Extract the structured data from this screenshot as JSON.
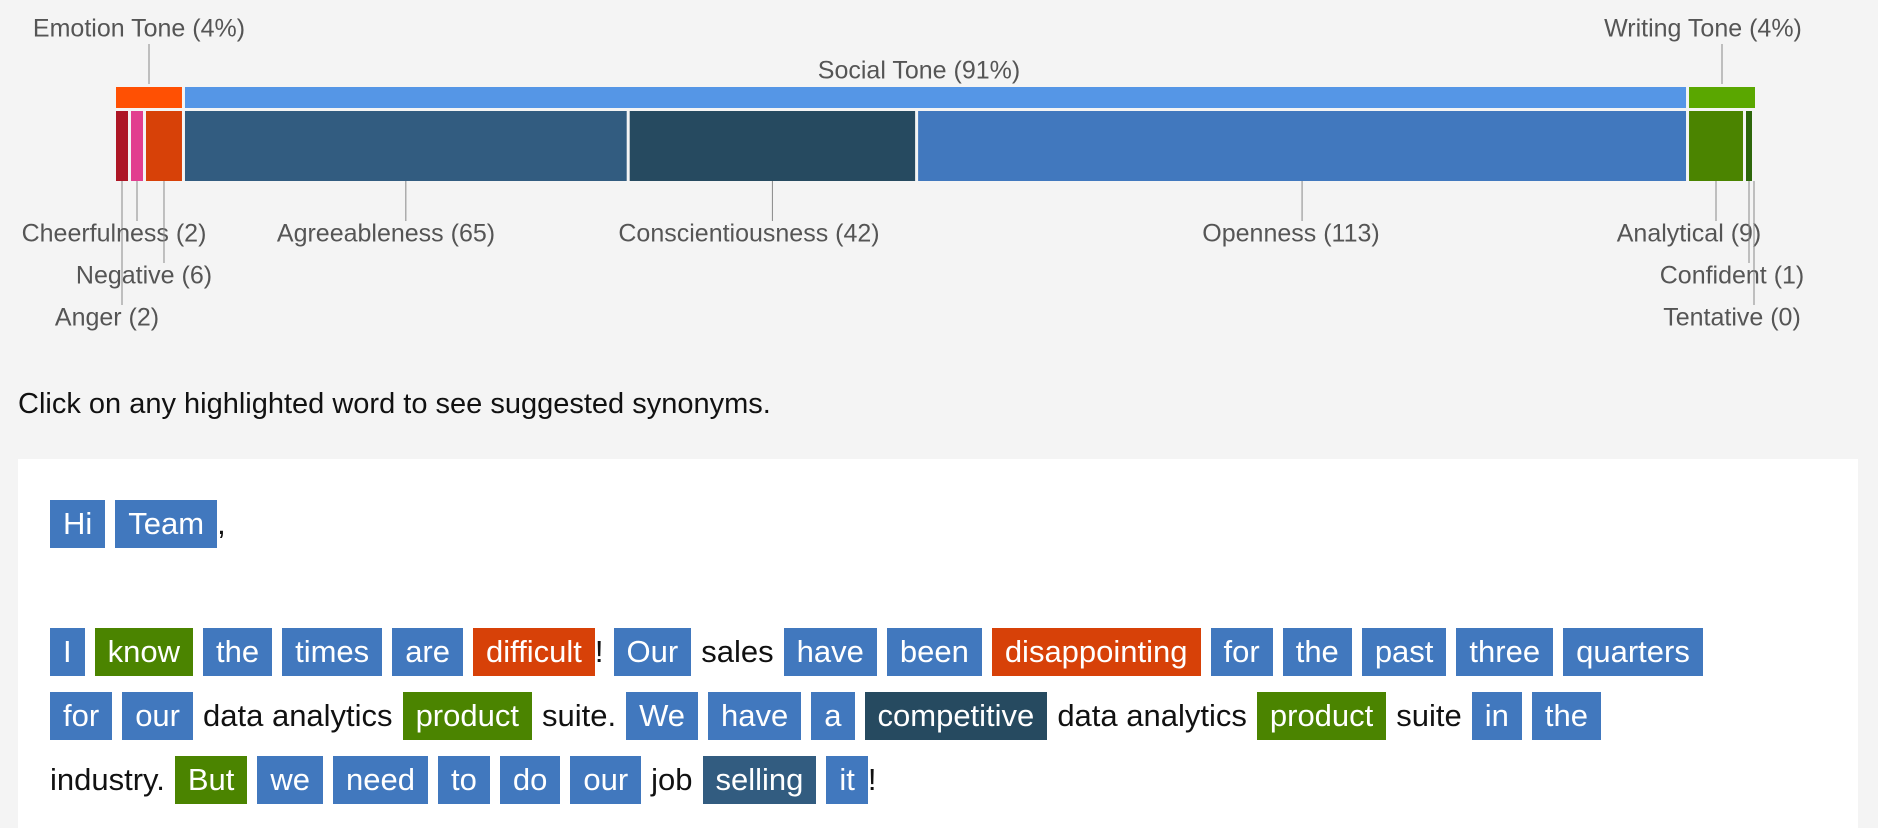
{
  "tone_chart": {
    "groups": [
      {
        "label": "Emotion Tone (4%)",
        "value": 4,
        "color": "#ff5003",
        "items": [
          {
            "label": "Anger (2)",
            "value": 2,
            "color": "#ad1625"
          },
          {
            "label": "Cheerfulness (2)",
            "value": 2,
            "color": "#e23e8f"
          },
          {
            "label": "Negative (6)",
            "value": 6,
            "color": "#d74108"
          }
        ]
      },
      {
        "label": "Social Tone (91%)",
        "value": 91,
        "color": "#5596e6",
        "items": [
          {
            "label": "Agreeableness (65)",
            "value": 65,
            "color": "#325c80"
          },
          {
            "label": "Conscientiousness (42)",
            "value": 42,
            "color": "#264a60"
          },
          {
            "label": "Openness (113)",
            "value": 113,
            "color": "#4178be"
          }
        ]
      },
      {
        "label": "Writing Tone (4%)",
        "value": 4,
        "color": "#5aa700",
        "items": [
          {
            "label": "Analytical (9)",
            "value": 9,
            "color": "#4b8400"
          },
          {
            "label": "Confident (1)",
            "value": 1,
            "color": "#2d660a"
          },
          {
            "label": "Tentative (0)",
            "value": 0,
            "color": "#144d14"
          }
        ]
      }
    ]
  },
  "instruction": "Click on any highlighted word to see suggested synonyms.",
  "document": {
    "lines": [
      [
        {
          "text": "Hi",
          "color": "#4178be"
        },
        {
          "text": "Team",
          "color": "#4178be"
        },
        {
          "text": ","
        }
      ],
      [
        {
          "text": "I",
          "color": "#4178be"
        },
        {
          "text": "know",
          "color": "#4b8400"
        },
        {
          "text": "the",
          "color": "#4178be"
        },
        {
          "text": "times",
          "color": "#4178be"
        },
        {
          "text": "are",
          "color": "#4178be"
        },
        {
          "text": "difficult",
          "color": "#d74108"
        },
        {
          "text": "!"
        },
        {
          "text": "Our",
          "color": "#4178be"
        },
        {
          "text": "sales"
        },
        {
          "text": "have",
          "color": "#4178be"
        },
        {
          "text": "been",
          "color": "#4178be"
        },
        {
          "text": "disappointing",
          "color": "#d74108"
        },
        {
          "text": "for",
          "color": "#4178be"
        },
        {
          "text": "the",
          "color": "#4178be"
        },
        {
          "text": "past",
          "color": "#4178be"
        },
        {
          "text": "three",
          "color": "#4178be"
        },
        {
          "text": "quarters",
          "color": "#4178be"
        }
      ],
      [
        {
          "text": "for",
          "color": "#4178be"
        },
        {
          "text": "our",
          "color": "#4178be"
        },
        {
          "text": "data analytics"
        },
        {
          "text": "product",
          "color": "#4b8400"
        },
        {
          "text": "suite."
        },
        {
          "text": "We",
          "color": "#4178be"
        },
        {
          "text": "have",
          "color": "#4178be"
        },
        {
          "text": "a",
          "color": "#4178be"
        },
        {
          "text": "competitive",
          "color": "#264a60"
        },
        {
          "text": "data analytics"
        },
        {
          "text": "product",
          "color": "#4b8400"
        },
        {
          "text": "suite"
        },
        {
          "text": "in",
          "color": "#4178be"
        },
        {
          "text": "the",
          "color": "#4178be"
        }
      ],
      [
        {
          "text": "industry."
        },
        {
          "text": "But",
          "color": "#4b8400"
        },
        {
          "text": "we",
          "color": "#4178be"
        },
        {
          "text": "need",
          "color": "#4178be"
        },
        {
          "text": "to",
          "color": "#4178be"
        },
        {
          "text": "do",
          "color": "#4178be"
        },
        {
          "text": "our",
          "color": "#4178be"
        },
        {
          "text": "job"
        },
        {
          "text": "selling",
          "color": "#325c80"
        },
        {
          "text": "it",
          "color": "#4178be"
        },
        {
          "text": "!"
        }
      ]
    ]
  }
}
